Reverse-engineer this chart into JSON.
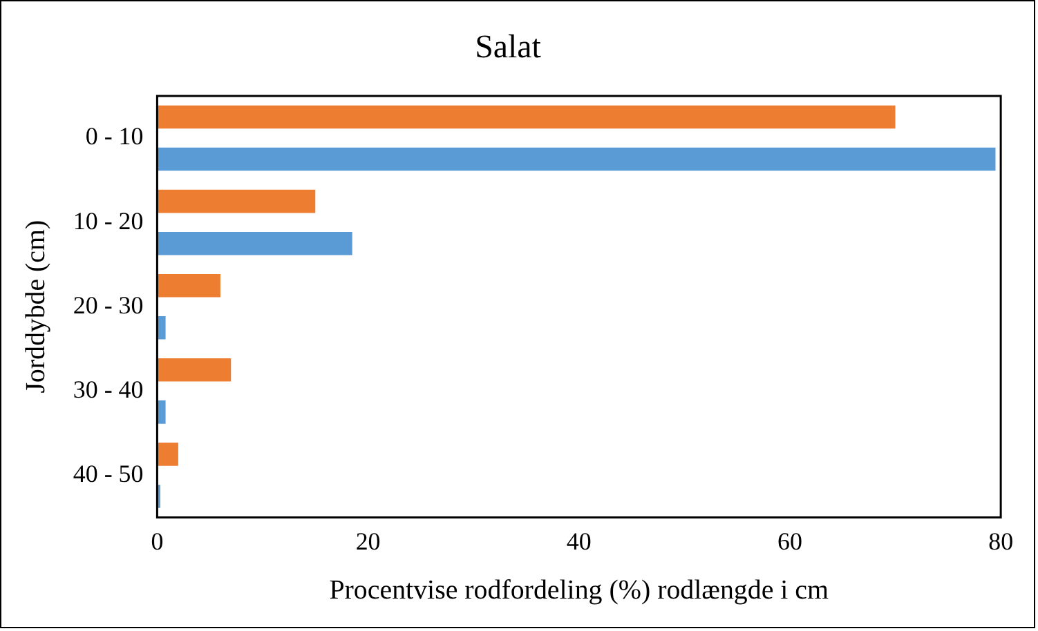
{
  "chart_data": {
    "type": "bar",
    "orientation": "horizontal",
    "title": "Salat",
    "xlabel": "Procentvise rodfordeling (%) rodlængde i cm",
    "ylabel": "Jorddybde (cm)",
    "categories": [
      "0 - 10",
      "10 - 20",
      "20 - 30",
      "30 - 40",
      "40 - 50"
    ],
    "series": [
      {
        "color": "#ed7d31",
        "values": [
          70,
          15,
          6,
          7,
          2
        ]
      },
      {
        "color": "#5b9bd5",
        "values": [
          79.5,
          18.5,
          0.8,
          0.8,
          0.3
        ]
      }
    ],
    "xlim": [
      0,
      80
    ],
    "xticks": [
      0,
      20,
      40,
      60,
      80
    ],
    "grid": false,
    "legend": false
  }
}
